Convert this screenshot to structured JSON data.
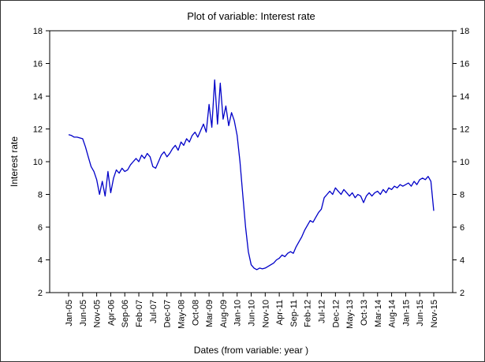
{
  "chart_data": {
    "type": "line",
    "title": "Plot of variable: Interest rate",
    "xlabel": "Dates (from variable: year )",
    "ylabel": "Interest rate",
    "series_name": "Interest rate",
    "ylim": [
      2,
      18
    ],
    "yticks": [
      2,
      4,
      6,
      8,
      10,
      12,
      14,
      16,
      18
    ],
    "x_tick_step": 5,
    "x_tick_labels": [
      "Jan-05",
      "Jun-05",
      "Nov-05",
      "Apr-06",
      "Sep-06",
      "Feb-07",
      "Jul-07",
      "Dec-07",
      "May-08",
      "Oct-08",
      "Mar-09",
      "Aug-09",
      "Jan-10",
      "Jun-10",
      "Nov-10",
      "Apr-11",
      "Sep-11",
      "Feb-12",
      "Jul-12",
      "Dec-12",
      "May-13",
      "Oct-13",
      "Mar-14",
      "Aug-14",
      "Jan-15",
      "Jun-15",
      "Nov-15"
    ],
    "values": [
      11.65,
      11.6,
      11.5,
      11.5,
      11.45,
      11.4,
      10.9,
      10.3,
      9.7,
      9.4,
      8.9,
      8.0,
      8.8,
      7.9,
      9.4,
      8.1,
      9.0,
      9.5,
      9.3,
      9.6,
      9.4,
      9.5,
      9.8,
      10.0,
      10.2,
      10.0,
      10.4,
      10.2,
      10.5,
      10.3,
      9.7,
      9.6,
      10.0,
      10.4,
      10.6,
      10.3,
      10.5,
      10.8,
      11.0,
      10.7,
      11.2,
      11.0,
      11.4,
      11.2,
      11.6,
      11.8,
      11.5,
      11.9,
      12.3,
      11.8,
      13.5,
      12.1,
      15.0,
      12.3,
      14.8,
      12.6,
      13.4,
      12.2,
      13.0,
      12.5,
      11.6,
      10.0,
      8.0,
      6.0,
      4.5,
      3.7,
      3.5,
      3.4,
      3.5,
      3.45,
      3.5,
      3.6,
      3.7,
      3.8,
      4.0,
      4.1,
      4.3,
      4.2,
      4.4,
      4.5,
      4.4,
      4.8,
      5.1,
      5.4,
      5.8,
      6.1,
      6.4,
      6.3,
      6.6,
      6.9,
      7.1,
      7.8,
      8.0,
      8.2,
      8.0,
      8.4,
      8.2,
      8.0,
      8.3,
      8.1,
      7.9,
      8.1,
      7.8,
      8.0,
      7.9,
      7.5,
      7.9,
      8.1,
      7.9,
      8.1,
      8.2,
      8.0,
      8.3,
      8.1,
      8.4,
      8.3,
      8.5,
      8.4,
      8.6,
      8.5,
      8.6,
      8.7,
      8.5,
      8.8,
      8.6,
      8.9,
      9.0,
      8.9,
      9.1,
      8.8,
      7.0
    ],
    "line_color": "#0000C8",
    "frame_color": "#000000",
    "background_color": "#ffffff",
    "grid": "off",
    "legend": "none"
  }
}
